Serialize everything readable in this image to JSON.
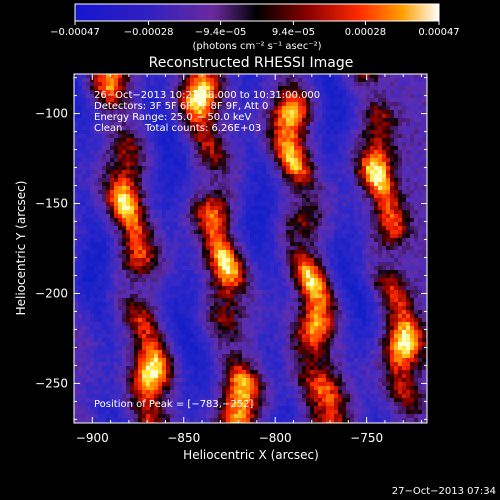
{
  "chart_data": {
    "type": "heatmap",
    "title": "Reconstructed RHESSI Image",
    "xlabel": "Heliocentric X (arcsec)",
    "ylabel": "Heliocentric Y (arcsec)",
    "xlim": [
      -910,
      -717
    ],
    "ylim": [
      -272,
      -78
    ],
    "x_ticks": [
      -900,
      -850,
      -800,
      -750
    ],
    "y_ticks": [
      -100,
      -150,
      -200,
      -250
    ],
    "x_tick_labels": [
      "−900",
      "−850",
      "−800",
      "−750"
    ],
    "y_tick_labels": [
      "−100",
      "−150",
      "−200",
      "−250"
    ],
    "colorbar": {
      "range": [
        -0.00047,
        0.00047
      ],
      "ticks": [
        -0.00047,
        -0.00028,
        -9.4e-05,
        9.4e-05,
        0.00028,
        0.00047
      ],
      "tick_labels": [
        "−0.00047",
        "−0.00028",
        "−9.4e−05",
        "9.4e−05",
        "0.00028",
        "0.00047"
      ],
      "units": "(photons cm⁻² s⁻¹ asec⁻²)"
    },
    "annotations": {
      "time": "26−Oct−2013 10:27:48.000 to 10:31:00.000",
      "detectors": "Detectors: 3F 5F 6F 7F 8F 9F, Att 0",
      "energy": "Energy Range: 25.0 − 50.0 keV",
      "method": "Clean",
      "counts": "Total counts: 6.26E+03",
      "peak": "Position of Peak = [−783,−252]"
    },
    "peak": [
      -783,
      -252
    ],
    "stripe_centers_x": [
      -877,
      -830,
      -783,
      -737
    ],
    "trough_centers_x": [
      -900,
      -853,
      -806,
      -760
    ],
    "stripe_tilt_x_per_y": -0.12,
    "colors": {
      "bright": "#ffffc0",
      "mid": "#ff2a00",
      "dark": "#220000",
      "trough": "#5028a8"
    }
  },
  "footer": {
    "timestamp": "27−Oct−2013 07:34"
  }
}
